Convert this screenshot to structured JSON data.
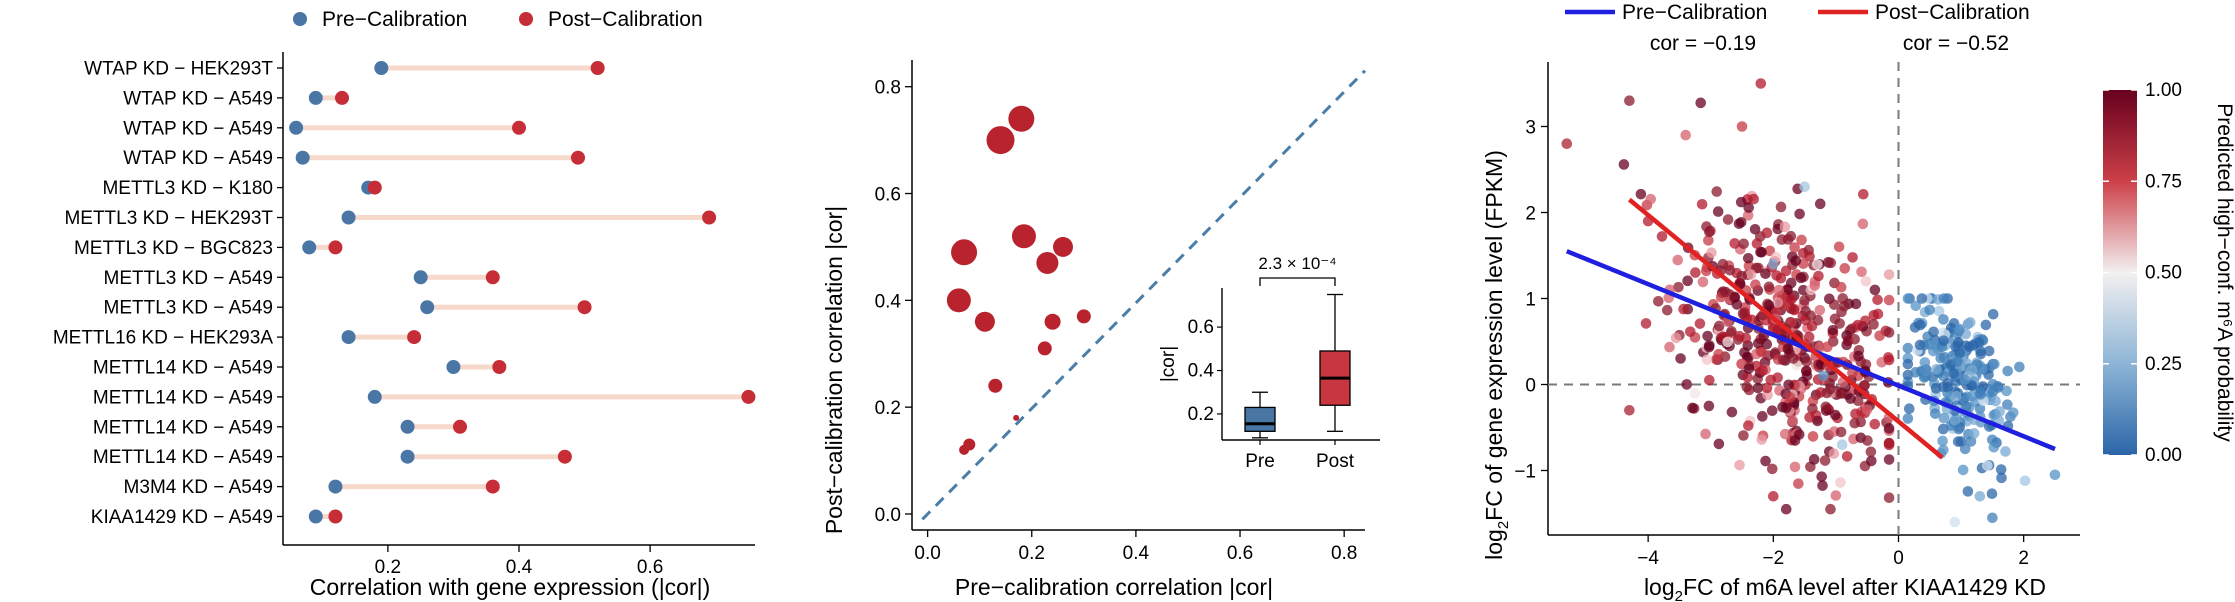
{
  "chart_data": [
    {
      "type": "dumbbell",
      "xlabel": "Correlation with gene expression (|cor|)",
      "xticks": [
        0.2,
        0.4,
        0.6
      ],
      "xlim": [
        0.04,
        0.76
      ],
      "legend": {
        "position": "top",
        "entries": [
          {
            "label": "Pre−Calibration",
            "color": "#4a76a6"
          },
          {
            "label": "Post−Calibration",
            "color": "#c62d36"
          }
        ]
      },
      "categories": [
        "WTAP KD − HEK293T",
        "WTAP KD − A549",
        "WTAP KD − A549",
        "WTAP KD − A549",
        "METTL3 KD − K180",
        "METTL3 KD − HEK293T",
        "METTL3 KD − BGC823",
        "METTL3 KD − A549",
        "METTL3 KD − A549",
        "METTL16 KD − HEK293A",
        "METTL14 KD − A549",
        "METTL14 KD − A549",
        "METTL14 KD − A549",
        "METTL14 KD − A549",
        "M3M4 KD − A549",
        "KIAA1429 KD − A549"
      ],
      "series": [
        {
          "name": "Pre−Calibration",
          "values": [
            0.19,
            0.09,
            0.06,
            0.07,
            0.17,
            0.14,
            0.08,
            0.25,
            0.26,
            0.14,
            0.3,
            0.18,
            0.23,
            0.23,
            0.12,
            0.09
          ]
        },
        {
          "name": "Post−Calibration",
          "values": [
            0.52,
            0.13,
            0.4,
            0.49,
            0.18,
            0.69,
            0.12,
            0.36,
            0.5,
            0.24,
            0.37,
            0.75,
            0.31,
            0.47,
            0.36,
            0.12
          ]
        }
      ]
    },
    {
      "type": "scatter",
      "xlabel": "Pre−calibration correlation |cor|",
      "ylabel": "Post−calibration correlation |cor|",
      "xticks": [
        0.0,
        0.2,
        0.4,
        0.6,
        0.8
      ],
      "yticks": [
        0.0,
        0.2,
        0.4,
        0.6,
        0.8
      ],
      "xlim": [
        -0.03,
        0.84
      ],
      "ylim": [
        -0.03,
        0.85
      ],
      "reference_line": "y = x (dashed)",
      "color": "#b8232e",
      "points": [
        {
          "x": 0.18,
          "y": 0.74,
          "size": 13
        },
        {
          "x": 0.14,
          "y": 0.7,
          "size": 14
        },
        {
          "x": 0.185,
          "y": 0.52,
          "size": 12
        },
        {
          "x": 0.26,
          "y": 0.5,
          "size": 10
        },
        {
          "x": 0.07,
          "y": 0.49,
          "size": 13
        },
        {
          "x": 0.23,
          "y": 0.47,
          "size": 11
        },
        {
          "x": 0.06,
          "y": 0.4,
          "size": 12
        },
        {
          "x": 0.11,
          "y": 0.36,
          "size": 10
        },
        {
          "x": 0.24,
          "y": 0.36,
          "size": 8
        },
        {
          "x": 0.3,
          "y": 0.37,
          "size": 7
        },
        {
          "x": 0.225,
          "y": 0.31,
          "size": 7
        },
        {
          "x": 0.13,
          "y": 0.24,
          "size": 7
        },
        {
          "x": 0.08,
          "y": 0.13,
          "size": 6
        },
        {
          "x": 0.07,
          "y": 0.12,
          "size": 5
        },
        {
          "x": 0.17,
          "y": 0.18,
          "size": 3
        }
      ],
      "inset": {
        "type": "boxplot",
        "ylabel": "|cor|",
        "categories": [
          "Pre",
          "Post"
        ],
        "yticks": [
          0.2,
          0.4,
          0.6
        ],
        "ylim": [
          0.08,
          0.78
        ],
        "annotation": "2.3 × 10⁻⁴",
        "boxes": [
          {
            "label": "Pre",
            "min": 0.09,
            "q1": 0.12,
            "median": 0.155,
            "q3": 0.23,
            "max": 0.3,
            "color": "#4a76a6"
          },
          {
            "label": "Post",
            "min": 0.12,
            "q1": 0.24,
            "median": 0.365,
            "q3": 0.49,
            "max": 0.75,
            "color": "#c8373f"
          }
        ]
      }
    },
    {
      "type": "scatter",
      "xlabel": "log₂FC of m6A level after KIAA1429 KD",
      "ylabel": "log₂FC of gene expression level (FPKM)",
      "xticks": [
        -4,
        -2,
        0,
        2
      ],
      "yticks": [
        -1,
        0,
        1,
        2,
        3
      ],
      "xlim": [
        -5.6,
        2.9
      ],
      "ylim": [
        -1.75,
        3.75
      ],
      "legend": {
        "position": "top",
        "entries": [
          {
            "label": "Pre−Calibration",
            "color": "#1f1fe0",
            "subtitle": "cor = −0.19"
          },
          {
            "label": "Post−Calibration",
            "color": "#e02222",
            "subtitle": "cor = −0.52"
          }
        ]
      },
      "regression_lines": [
        {
          "name": "Pre−Calibration",
          "x": [
            -5.3,
            2.5
          ],
          "y": [
            1.55,
            -0.75
          ],
          "color": "#1f1fe0"
        },
        {
          "name": "Post−Calibration",
          "x": [
            -4.3,
            0.7
          ],
          "y": [
            2.15,
            -0.85
          ],
          "color": "#e02222"
        }
      ],
      "reference_lines": {
        "x": 0,
        "y": 0
      },
      "colorbar": {
        "title": "Predicted high−conf. m⁶A probability",
        "ticks": [
          "0.00",
          "0.25",
          "0.50",
          "0.75",
          "1.00"
        ],
        "colors": [
          "#2b66a8",
          "#8db5d6",
          "#f3f0f0",
          "#cc4048",
          "#67001f"
        ]
      },
      "point_clusters": [
        {
          "description": "red cluster (high probability)",
          "x_center": -1.8,
          "x_sd": 0.9,
          "y_center": 0.55,
          "y_sd": 0.75,
          "count": 500
        },
        {
          "description": "blue cluster (low probability)",
          "x_center": 1.0,
          "x_sd": 0.45,
          "y_center": 0.05,
          "y_sd": 0.45,
          "count": 240
        }
      ]
    }
  ]
}
